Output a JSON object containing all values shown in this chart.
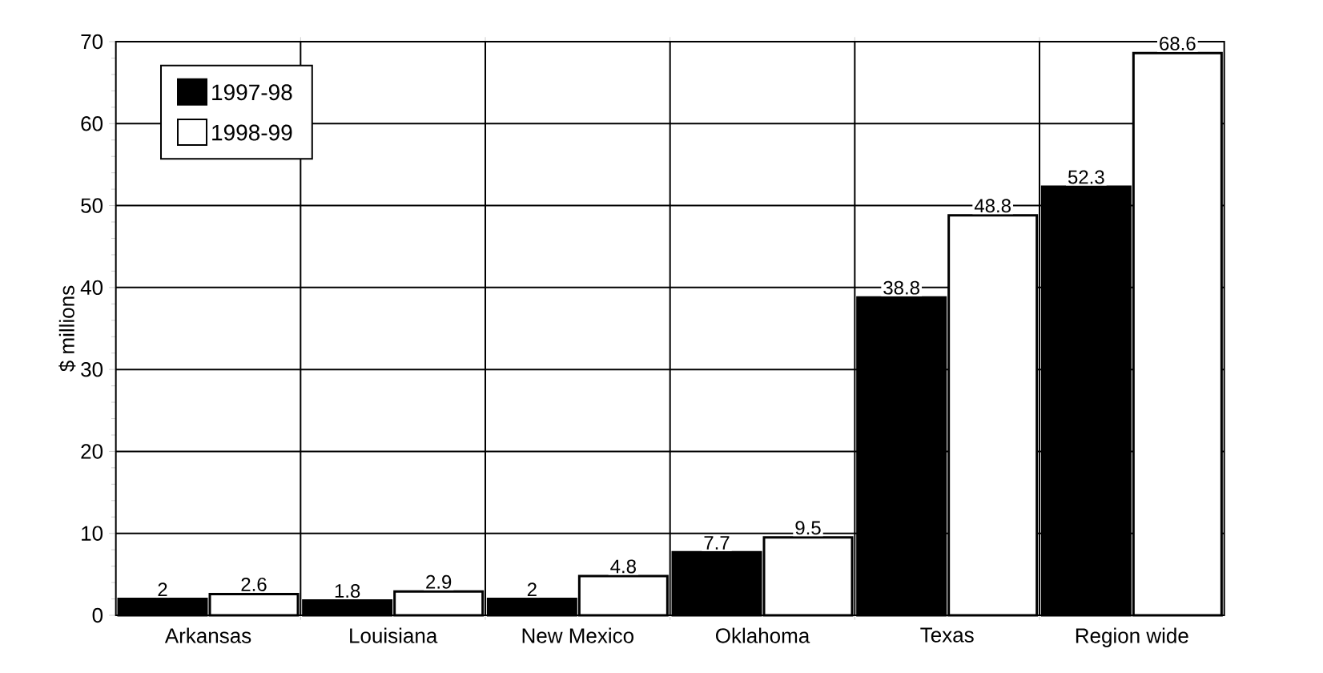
{
  "chart_data": {
    "type": "bar",
    "ylabel": "$ millions",
    "categories": [
      "Arkansas",
      "Louisiana",
      "New Mexico",
      "Oklahoma",
      "Texas",
      "Region wide"
    ],
    "series": [
      {
        "name": "1997-98",
        "color": "#000000",
        "values": [
          2,
          1.8,
          2,
          7.7,
          38.8,
          52.3
        ]
      },
      {
        "name": "1998-99",
        "color": "#ffffff",
        "values": [
          2.6,
          2.9,
          4.8,
          9.5,
          48.8,
          68.6
        ]
      }
    ],
    "ylim": [
      0,
      70
    ],
    "yticks": [
      0,
      10,
      20,
      30,
      40,
      50,
      60,
      70
    ],
    "grid": true,
    "legend": "top left",
    "data_labels": true
  }
}
